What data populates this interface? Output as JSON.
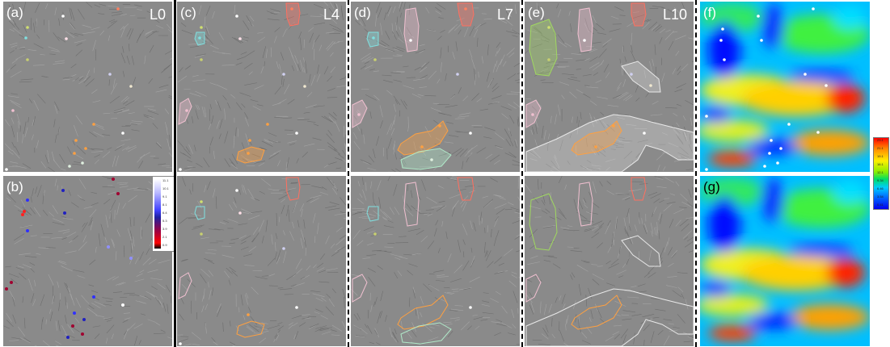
{
  "panels": {
    "a": {
      "label": "(a)",
      "level": "L0"
    },
    "b": {
      "label": "(b)"
    },
    "c": {
      "label": "(c)",
      "level": "L4"
    },
    "d": {
      "label": "(d)",
      "level": "L7"
    },
    "e": {
      "label": "(e)",
      "level": "L10"
    },
    "f": {
      "label": "(f)"
    },
    "g": {
      "label": "(g)"
    }
  },
  "colorbar": {
    "ticks": [
      "23.1",
      "21.1",
      "19.1",
      "16.1",
      "12.1",
      "9.34",
      "6.46",
      "3.54",
      "0.41"
    ]
  },
  "legend_b": {
    "ticks": [
      "11.1",
      "10.1",
      "9.1",
      "8.1",
      "6.4",
      "5.3",
      "3.9",
      "2.1",
      "0.9"
    ]
  },
  "colors": {
    "background": "#8a8a8a",
    "text": "#ffffff",
    "region_red": "#ff7060",
    "region_pink": "#f0c0d0",
    "region_cyan": "#80e0e0",
    "region_orange": "#ffa040",
    "region_green": "#a0d860",
    "region_mint": "#b0e8c8",
    "region_white": "#e8e8e8"
  }
}
